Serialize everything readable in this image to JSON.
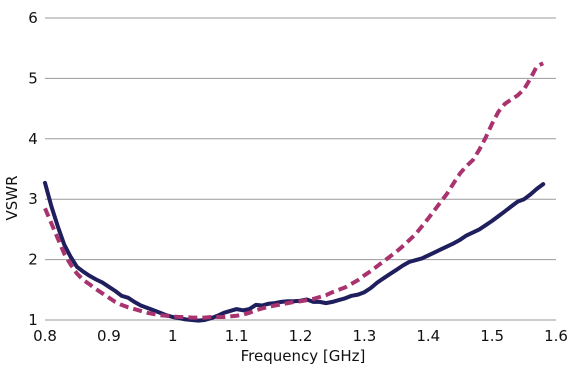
{
  "chart_data": {
    "type": "line",
    "title": "",
    "xlabel": "Frequency [GHz]",
    "ylabel": "VSWR",
    "xlim": [
      0.8,
      1.6
    ],
    "ylim": [
      1,
      6
    ],
    "x_ticks": [
      "0.8",
      "0.9",
      "1",
      "1.1",
      "1.2",
      "1.3",
      "1.4",
      "1.5",
      "1.6"
    ],
    "y_ticks": [
      "1",
      "2",
      "3",
      "4",
      "5",
      "6"
    ],
    "grid": "horizontal",
    "legend": "none",
    "series": [
      {
        "style": "solid",
        "color": "#1f1f5e",
        "points": [
          [
            0.8,
            3.27
          ],
          [
            0.81,
            2.88
          ],
          [
            0.82,
            2.55
          ],
          [
            0.83,
            2.25
          ],
          [
            0.84,
            2.05
          ],
          [
            0.85,
            1.88
          ],
          [
            0.86,
            1.8
          ],
          [
            0.87,
            1.73
          ],
          [
            0.88,
            1.67
          ],
          [
            0.89,
            1.62
          ],
          [
            0.9,
            1.55
          ],
          [
            0.91,
            1.48
          ],
          [
            0.92,
            1.4
          ],
          [
            0.93,
            1.37
          ],
          [
            0.94,
            1.3
          ],
          [
            0.95,
            1.24
          ],
          [
            0.96,
            1.2
          ],
          [
            0.97,
            1.16
          ],
          [
            0.98,
            1.12
          ],
          [
            0.99,
            1.08
          ],
          [
            1.0,
            1.05
          ],
          [
            1.01,
            1.03
          ],
          [
            1.02,
            1.01
          ],
          [
            1.03,
            1.0
          ],
          [
            1.04,
            0.99
          ],
          [
            1.05,
            1.0
          ],
          [
            1.06,
            1.03
          ],
          [
            1.07,
            1.07
          ],
          [
            1.08,
            1.12
          ],
          [
            1.09,
            1.15
          ],
          [
            1.1,
            1.18
          ],
          [
            1.11,
            1.16
          ],
          [
            1.12,
            1.18
          ],
          [
            1.13,
            1.25
          ],
          [
            1.14,
            1.24
          ],
          [
            1.15,
            1.27
          ],
          [
            1.16,
            1.28
          ],
          [
            1.17,
            1.3
          ],
          [
            1.18,
            1.31
          ],
          [
            1.19,
            1.31
          ],
          [
            1.2,
            1.32
          ],
          [
            1.21,
            1.34
          ],
          [
            1.22,
            1.3
          ],
          [
            1.23,
            1.3
          ],
          [
            1.24,
            1.28
          ],
          [
            1.25,
            1.3
          ],
          [
            1.26,
            1.33
          ],
          [
            1.27,
            1.36
          ],
          [
            1.28,
            1.4
          ],
          [
            1.29,
            1.42
          ],
          [
            1.3,
            1.46
          ],
          [
            1.31,
            1.53
          ],
          [
            1.32,
            1.62
          ],
          [
            1.33,
            1.69
          ],
          [
            1.34,
            1.76
          ],
          [
            1.35,
            1.83
          ],
          [
            1.36,
            1.9
          ],
          [
            1.37,
            1.96
          ],
          [
            1.38,
            1.99
          ],
          [
            1.39,
            2.02
          ],
          [
            1.4,
            2.07
          ],
          [
            1.41,
            2.12
          ],
          [
            1.42,
            2.17
          ],
          [
            1.43,
            2.22
          ],
          [
            1.44,
            2.27
          ],
          [
            1.45,
            2.33
          ],
          [
            1.46,
            2.4
          ],
          [
            1.47,
            2.45
          ],
          [
            1.48,
            2.5
          ],
          [
            1.49,
            2.57
          ],
          [
            1.5,
            2.64
          ],
          [
            1.51,
            2.72
          ],
          [
            1.52,
            2.8
          ],
          [
            1.53,
            2.88
          ],
          [
            1.54,
            2.96
          ],
          [
            1.55,
            3.0
          ],
          [
            1.56,
            3.08
          ],
          [
            1.57,
            3.17
          ],
          [
            1.58,
            3.25
          ]
        ]
      },
      {
        "style": "dashed",
        "color": "#a8336e",
        "points": [
          [
            0.8,
            2.85
          ],
          [
            0.81,
            2.6
          ],
          [
            0.82,
            2.35
          ],
          [
            0.83,
            2.1
          ],
          [
            0.84,
            1.92
          ],
          [
            0.85,
            1.77
          ],
          [
            0.86,
            1.66
          ],
          [
            0.87,
            1.59
          ],
          [
            0.88,
            1.51
          ],
          [
            0.89,
            1.44
          ],
          [
            0.9,
            1.37
          ],
          [
            0.91,
            1.3
          ],
          [
            0.92,
            1.25
          ],
          [
            0.93,
            1.21
          ],
          [
            0.94,
            1.18
          ],
          [
            0.95,
            1.15
          ],
          [
            0.96,
            1.12
          ],
          [
            0.97,
            1.1
          ],
          [
            0.98,
            1.08
          ],
          [
            0.99,
            1.07
          ],
          [
            1.0,
            1.06
          ],
          [
            1.01,
            1.05
          ],
          [
            1.02,
            1.05
          ],
          [
            1.03,
            1.04
          ],
          [
            1.04,
            1.04
          ],
          [
            1.05,
            1.04
          ],
          [
            1.06,
            1.05
          ],
          [
            1.07,
            1.05
          ],
          [
            1.08,
            1.05
          ],
          [
            1.09,
            1.06
          ],
          [
            1.1,
            1.07
          ],
          [
            1.11,
            1.09
          ],
          [
            1.12,
            1.12
          ],
          [
            1.13,
            1.16
          ],
          [
            1.14,
            1.19
          ],
          [
            1.15,
            1.22
          ],
          [
            1.16,
            1.24
          ],
          [
            1.17,
            1.26
          ],
          [
            1.18,
            1.28
          ],
          [
            1.19,
            1.3
          ],
          [
            1.2,
            1.31
          ],
          [
            1.21,
            1.33
          ],
          [
            1.22,
            1.35
          ],
          [
            1.23,
            1.38
          ],
          [
            1.24,
            1.41
          ],
          [
            1.25,
            1.46
          ],
          [
            1.26,
            1.5
          ],
          [
            1.27,
            1.54
          ],
          [
            1.28,
            1.6
          ],
          [
            1.29,
            1.66
          ],
          [
            1.3,
            1.74
          ],
          [
            1.31,
            1.81
          ],
          [
            1.32,
            1.89
          ],
          [
            1.33,
            1.97
          ],
          [
            1.34,
            2.05
          ],
          [
            1.35,
            2.13
          ],
          [
            1.36,
            2.22
          ],
          [
            1.37,
            2.32
          ],
          [
            1.38,
            2.42
          ],
          [
            1.39,
            2.55
          ],
          [
            1.4,
            2.68
          ],
          [
            1.41,
            2.82
          ],
          [
            1.42,
            2.96
          ],
          [
            1.43,
            3.1
          ],
          [
            1.44,
            3.27
          ],
          [
            1.45,
            3.43
          ],
          [
            1.46,
            3.55
          ],
          [
            1.47,
            3.65
          ],
          [
            1.48,
            3.82
          ],
          [
            1.49,
            4.02
          ],
          [
            1.5,
            4.25
          ],
          [
            1.51,
            4.45
          ],
          [
            1.52,
            4.58
          ],
          [
            1.53,
            4.65
          ],
          [
            1.54,
            4.72
          ],
          [
            1.55,
            4.82
          ],
          [
            1.56,
            5.0
          ],
          [
            1.57,
            5.2
          ],
          [
            1.58,
            5.25
          ]
        ]
      }
    ]
  }
}
